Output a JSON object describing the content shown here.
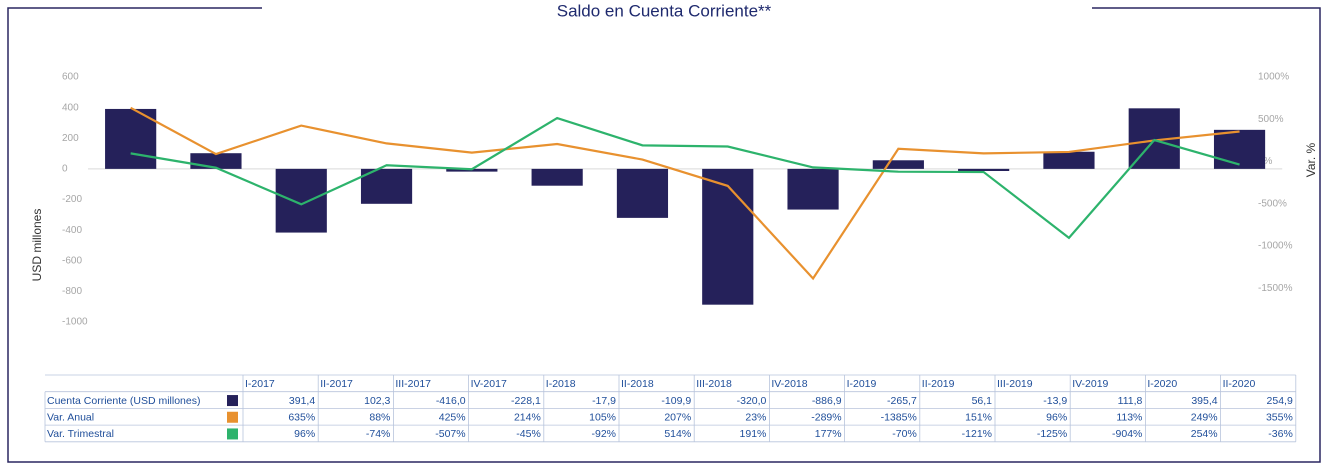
{
  "chart_data": {
    "type": "bar",
    "title": "Saldo en Cuenta Corriente**",
    "ylabel": "USD millones",
    "y2label": "Var. %",
    "categories": [
      "I-2017",
      "II-2017",
      "III-2017",
      "IV-2017",
      "I-2018",
      "II-2018",
      "III-2018",
      "IV-2018",
      "I-2019",
      "II-2019",
      "III-2019",
      "IV-2019",
      "I-2020",
      "II-2020"
    ],
    "series": [
      {
        "name": "Cuenta Corriente (USD millones)",
        "type": "bar",
        "color": "#25215a",
        "values": [
          391.4,
          102.3,
          -416.0,
          -228.1,
          -17.9,
          -109.9,
          -320.0,
          -886.9,
          -265.7,
          56.1,
          -13.9,
          111.8,
          395.4,
          254.9
        ],
        "value_labels": [
          "391,4",
          "102,3",
          "-416,0",
          "-228,1",
          "-17,9",
          "-109,9",
          "-320,0",
          "-886,9",
          "-265,7",
          "56,1",
          "-13,9",
          "111,8",
          "395,4",
          "254,9"
        ]
      },
      {
        "name": "Var. Anual",
        "type": "line",
        "axis": "y2",
        "color": "#e8912f",
        "values": [
          635,
          88,
          425,
          214,
          105,
          207,
          23,
          -289,
          -1385,
          151,
          96,
          113,
          249,
          355
        ],
        "value_labels": [
          "635%",
          "88%",
          "425%",
          "214%",
          "105%",
          "207%",
          "23%",
          "-289%",
          "-1385%",
          "151%",
          "96%",
          "113%",
          "249%",
          "355%"
        ]
      },
      {
        "name": "Var. Trimestral",
        "type": "line",
        "axis": "y2",
        "color": "#2db36c",
        "values": [
          96,
          -74,
          -507,
          -45,
          -92,
          514,
          191,
          177,
          -70,
          -121,
          -125,
          -904,
          254,
          -36
        ],
        "value_labels": [
          "96%",
          "-74%",
          "-507%",
          "-45%",
          "-92%",
          "514%",
          "191%",
          "177%",
          "-70%",
          "-121%",
          "-125%",
          "-904%",
          "254%",
          "-36%"
        ]
      }
    ],
    "ylim": [
      -1000,
      600
    ],
    "yticks": [
      600,
      400,
      200,
      0,
      -200,
      -400,
      -600,
      -800,
      -1000
    ],
    "y2lim": [
      -1900,
      1000
    ],
    "y2ticks": [
      {
        "value": 1000,
        "label": "1000%"
      },
      {
        "value": 500,
        "label": "500%"
      },
      {
        "value": 0,
        "label": "0%"
      },
      {
        "value": -500,
        "label": "-500%"
      },
      {
        "value": -1000,
        "label": "-1000%"
      },
      {
        "value": -1500,
        "label": "-1500%"
      }
    ]
  }
}
